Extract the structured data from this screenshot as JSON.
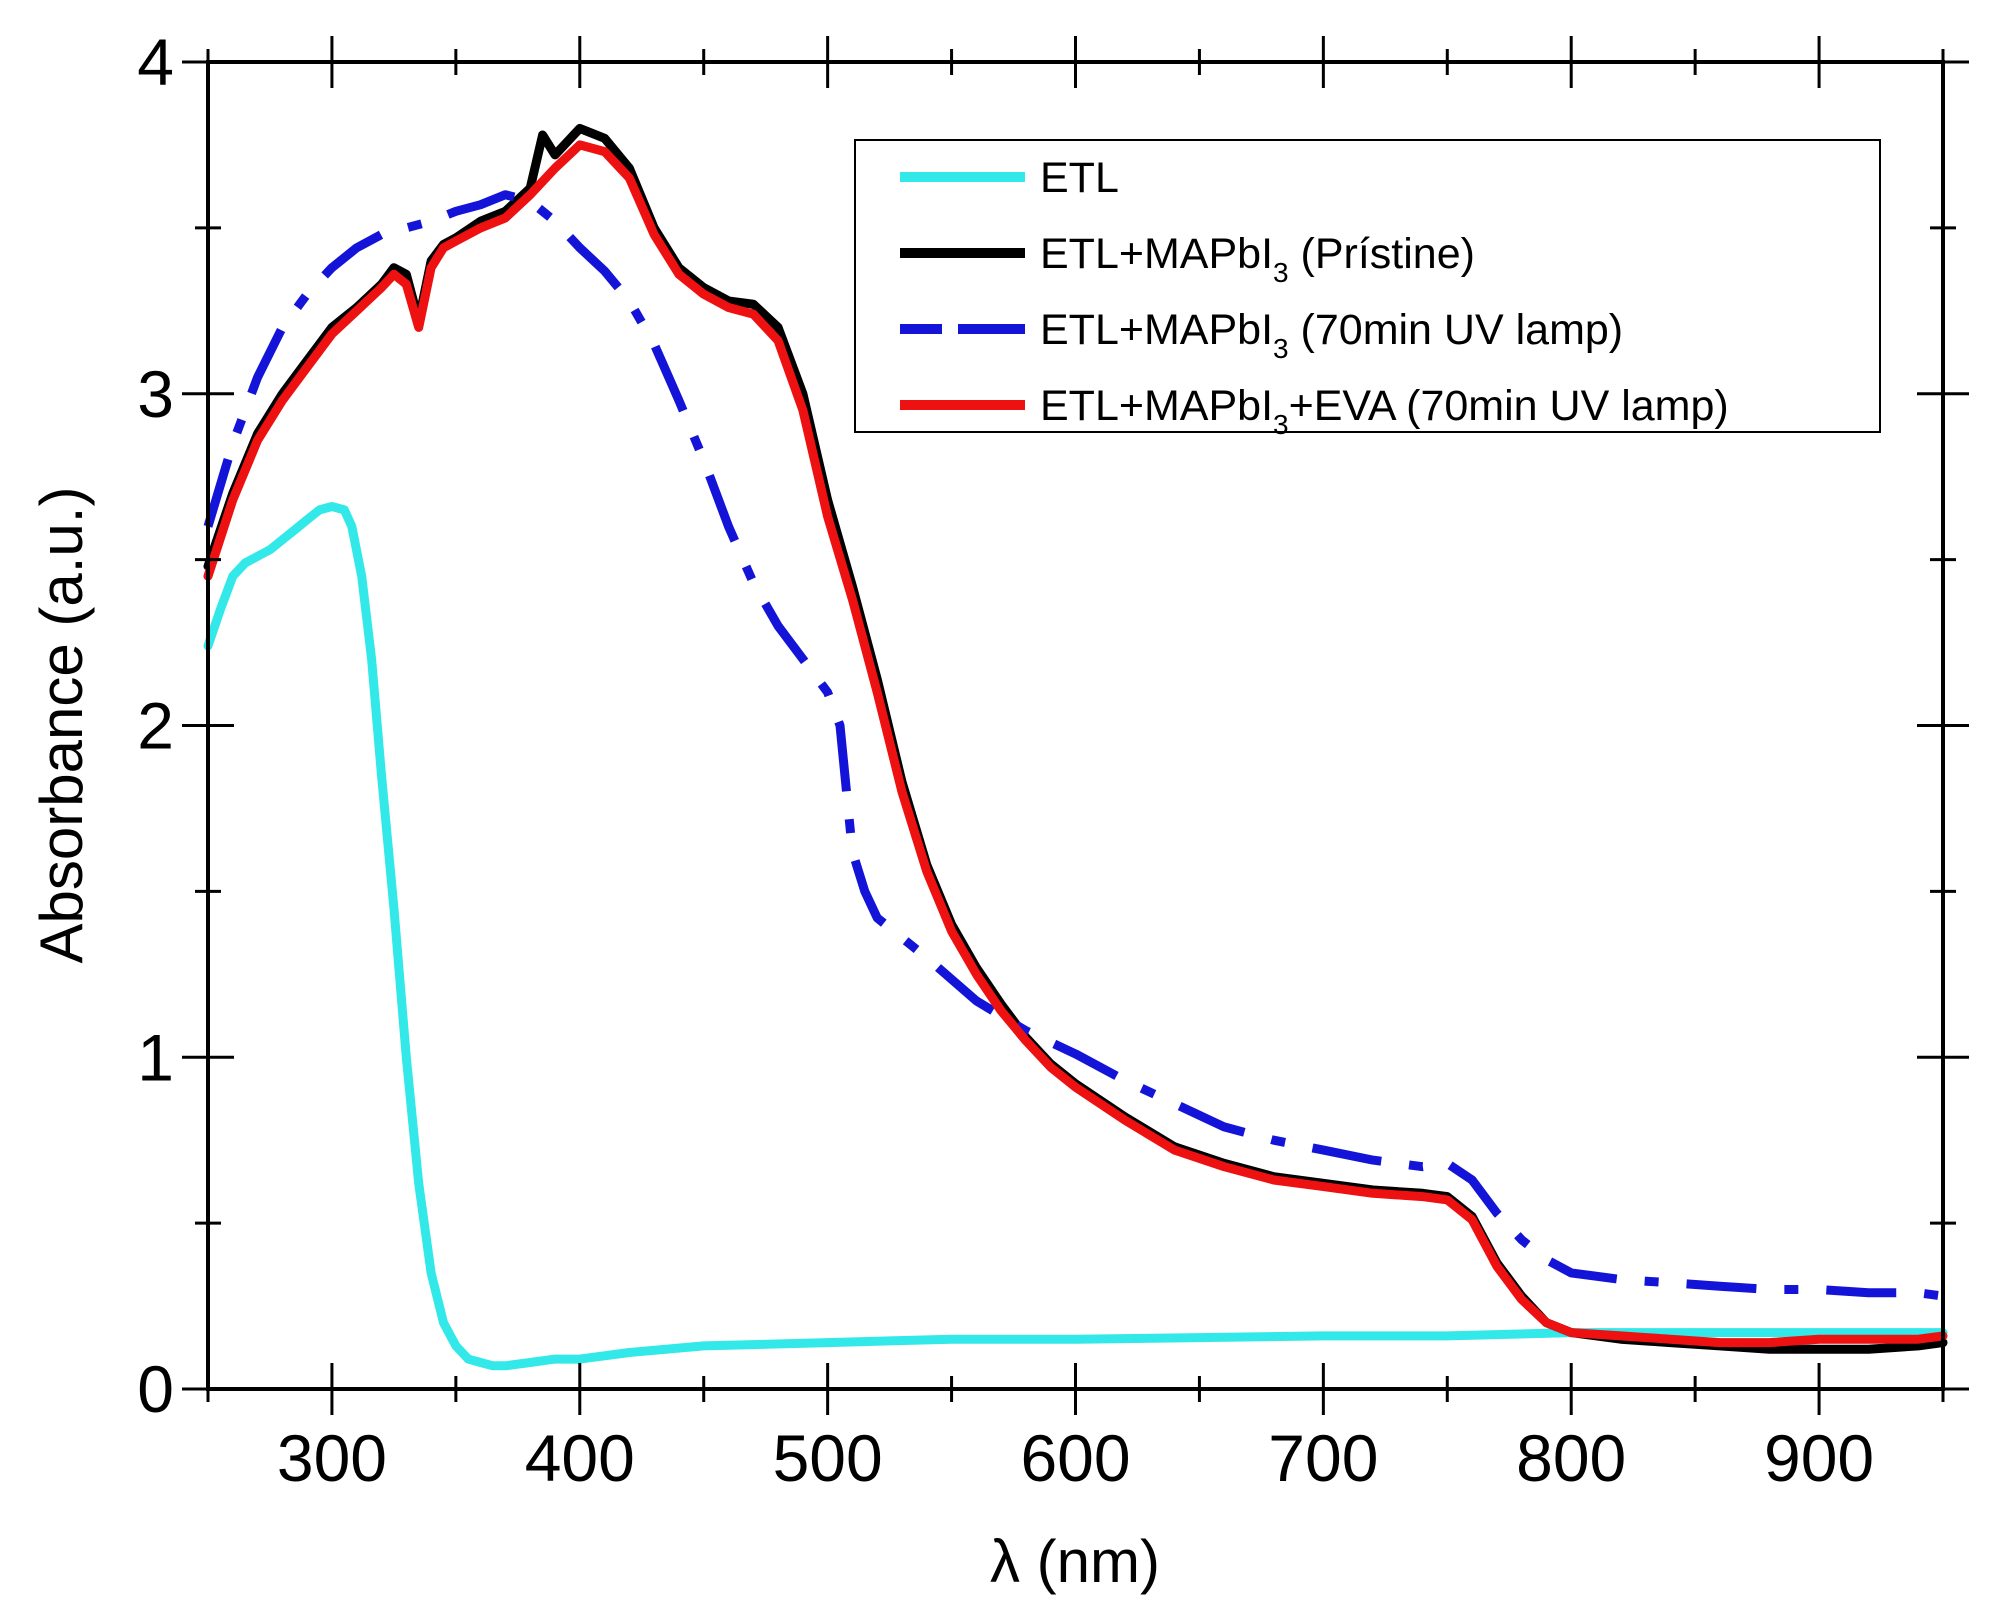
{
  "chart_data": {
    "type": "line",
    "xlabel": "λ (nm)",
    "ylabel": "Absorbance (a.u.)",
    "xlim": [
      250,
      950
    ],
    "ylim": [
      0,
      4
    ],
    "xticks": [
      300,
      400,
      500,
      600,
      700,
      800,
      900
    ],
    "yticks": [
      0,
      1,
      2,
      3,
      4
    ],
    "xtick_labels": [
      "300",
      "400",
      "500",
      "600",
      "700",
      "800",
      "900"
    ],
    "ytick_labels": [
      "0",
      "1",
      "2",
      "3",
      "4"
    ],
    "legend_position": "top-right",
    "series": [
      {
        "name": "ETL",
        "label_parts": [
          "ETL"
        ],
        "color": "#33e8e8",
        "style": "solid",
        "points": [
          [
            250,
            2.24
          ],
          [
            255,
            2.35
          ],
          [
            260,
            2.45
          ],
          [
            265,
            2.49
          ],
          [
            270,
            2.51
          ],
          [
            275,
            2.53
          ],
          [
            280,
            2.56
          ],
          [
            285,
            2.59
          ],
          [
            290,
            2.62
          ],
          [
            295,
            2.65
          ],
          [
            300,
            2.66
          ],
          [
            305,
            2.65
          ],
          [
            308,
            2.6
          ],
          [
            312,
            2.45
          ],
          [
            316,
            2.2
          ],
          [
            320,
            1.85
          ],
          [
            325,
            1.45
          ],
          [
            330,
            1.0
          ],
          [
            335,
            0.62
          ],
          [
            340,
            0.35
          ],
          [
            345,
            0.2
          ],
          [
            350,
            0.13
          ],
          [
            355,
            0.09
          ],
          [
            360,
            0.08
          ],
          [
            365,
            0.07
          ],
          [
            370,
            0.07
          ],
          [
            380,
            0.08
          ],
          [
            390,
            0.09
          ],
          [
            400,
            0.09
          ],
          [
            420,
            0.11
          ],
          [
            450,
            0.13
          ],
          [
            500,
            0.14
          ],
          [
            550,
            0.15
          ],
          [
            600,
            0.15
          ],
          [
            650,
            0.155
          ],
          [
            700,
            0.16
          ],
          [
            750,
            0.16
          ],
          [
            800,
            0.17
          ],
          [
            850,
            0.17
          ],
          [
            900,
            0.17
          ],
          [
            950,
            0.17
          ]
        ]
      },
      {
        "name": "ETL+MAPbI3 (Prístine)",
        "label_parts": [
          "ETL+MAPbI",
          "3",
          " (Prístine)"
        ],
        "color": "#000000",
        "style": "solid",
        "points": [
          [
            250,
            2.48
          ],
          [
            260,
            2.7
          ],
          [
            270,
            2.88
          ],
          [
            280,
            3.0
          ],
          [
            290,
            3.1
          ],
          [
            300,
            3.2
          ],
          [
            310,
            3.26
          ],
          [
            320,
            3.33
          ],
          [
            325,
            3.38
          ],
          [
            330,
            3.36
          ],
          [
            335,
            3.22
          ],
          [
            340,
            3.4
          ],
          [
            345,
            3.45
          ],
          [
            350,
            3.47
          ],
          [
            360,
            3.52
          ],
          [
            370,
            3.55
          ],
          [
            380,
            3.62
          ],
          [
            385,
            3.78
          ],
          [
            390,
            3.72
          ],
          [
            400,
            3.8
          ],
          [
            410,
            3.77
          ],
          [
            420,
            3.68
          ],
          [
            430,
            3.5
          ],
          [
            440,
            3.38
          ],
          [
            450,
            3.32
          ],
          [
            460,
            3.28
          ],
          [
            470,
            3.27
          ],
          [
            480,
            3.2
          ],
          [
            490,
            3.0
          ],
          [
            500,
            2.68
          ],
          [
            510,
            2.42
          ],
          [
            520,
            2.14
          ],
          [
            530,
            1.83
          ],
          [
            540,
            1.58
          ],
          [
            550,
            1.4
          ],
          [
            560,
            1.27
          ],
          [
            570,
            1.16
          ],
          [
            580,
            1.06
          ],
          [
            590,
            0.98
          ],
          [
            600,
            0.92
          ],
          [
            620,
            0.82
          ],
          [
            640,
            0.73
          ],
          [
            660,
            0.68
          ],
          [
            680,
            0.64
          ],
          [
            700,
            0.62
          ],
          [
            720,
            0.6
          ],
          [
            740,
            0.59
          ],
          [
            750,
            0.58
          ],
          [
            760,
            0.52
          ],
          [
            770,
            0.38
          ],
          [
            780,
            0.28
          ],
          [
            790,
            0.2
          ],
          [
            800,
            0.17
          ],
          [
            820,
            0.15
          ],
          [
            840,
            0.14
          ],
          [
            860,
            0.13
          ],
          [
            880,
            0.12
          ],
          [
            900,
            0.12
          ],
          [
            920,
            0.12
          ],
          [
            940,
            0.13
          ],
          [
            950,
            0.14
          ]
        ]
      },
      {
        "name": "ETL+MAPbI3 (70min UV lamp)",
        "label_parts": [
          "ETL+MAPbI",
          "3",
          " (70min UV lamp)"
        ],
        "color": "#1414d8",
        "style": "dashdot",
        "points": [
          [
            250,
            2.6
          ],
          [
            260,
            2.85
          ],
          [
            270,
            3.05
          ],
          [
            280,
            3.2
          ],
          [
            290,
            3.3
          ],
          [
            300,
            3.38
          ],
          [
            310,
            3.44
          ],
          [
            320,
            3.48
          ],
          [
            330,
            3.5
          ],
          [
            340,
            3.52
          ],
          [
            350,
            3.55
          ],
          [
            360,
            3.57
          ],
          [
            370,
            3.6
          ],
          [
            380,
            3.58
          ],
          [
            390,
            3.52
          ],
          [
            400,
            3.44
          ],
          [
            410,
            3.37
          ],
          [
            420,
            3.28
          ],
          [
            430,
            3.15
          ],
          [
            440,
            2.98
          ],
          [
            450,
            2.8
          ],
          [
            460,
            2.6
          ],
          [
            470,
            2.43
          ],
          [
            480,
            2.3
          ],
          [
            490,
            2.2
          ],
          [
            500,
            2.1
          ],
          [
            505,
            2.0
          ],
          [
            510,
            1.62
          ],
          [
            515,
            1.5
          ],
          [
            520,
            1.42
          ],
          [
            530,
            1.36
          ],
          [
            540,
            1.3
          ],
          [
            560,
            1.17
          ],
          [
            580,
            1.08
          ],
          [
            600,
            1.01
          ],
          [
            620,
            0.93
          ],
          [
            640,
            0.86
          ],
          [
            660,
            0.79
          ],
          [
            680,
            0.75
          ],
          [
            700,
            0.72
          ],
          [
            720,
            0.69
          ],
          [
            740,
            0.67
          ],
          [
            750,
            0.68
          ],
          [
            760,
            0.63
          ],
          [
            770,
            0.53
          ],
          [
            780,
            0.45
          ],
          [
            790,
            0.39
          ],
          [
            800,
            0.35
          ],
          [
            820,
            0.33
          ],
          [
            840,
            0.32
          ],
          [
            860,
            0.31
          ],
          [
            880,
            0.3
          ],
          [
            900,
            0.3
          ],
          [
            920,
            0.29
          ],
          [
            940,
            0.29
          ],
          [
            950,
            0.28
          ]
        ]
      },
      {
        "name": "ETL+MAPbI3+EVA (70min UV lamp)",
        "label_parts": [
          "ETL+MAPbI",
          "3",
          "+EVA (70min UV lamp)"
        ],
        "color": "#ee1111",
        "style": "solid",
        "points": [
          [
            250,
            2.45
          ],
          [
            260,
            2.68
          ],
          [
            270,
            2.86
          ],
          [
            280,
            2.98
          ],
          [
            290,
            3.08
          ],
          [
            300,
            3.18
          ],
          [
            310,
            3.25
          ],
          [
            320,
            3.32
          ],
          [
            325,
            3.36
          ],
          [
            330,
            3.33
          ],
          [
            335,
            3.2
          ],
          [
            340,
            3.38
          ],
          [
            345,
            3.44
          ],
          [
            350,
            3.46
          ],
          [
            360,
            3.5
          ],
          [
            370,
            3.53
          ],
          [
            380,
            3.6
          ],
          [
            390,
            3.68
          ],
          [
            400,
            3.75
          ],
          [
            410,
            3.73
          ],
          [
            420,
            3.65
          ],
          [
            430,
            3.48
          ],
          [
            440,
            3.36
          ],
          [
            450,
            3.3
          ],
          [
            460,
            3.26
          ],
          [
            470,
            3.24
          ],
          [
            480,
            3.16
          ],
          [
            490,
            2.95
          ],
          [
            500,
            2.63
          ],
          [
            510,
            2.38
          ],
          [
            520,
            2.1
          ],
          [
            530,
            1.8
          ],
          [
            540,
            1.56
          ],
          [
            550,
            1.38
          ],
          [
            560,
            1.25
          ],
          [
            570,
            1.14
          ],
          [
            580,
            1.05
          ],
          [
            590,
            0.97
          ],
          [
            600,
            0.91
          ],
          [
            620,
            0.81
          ],
          [
            640,
            0.72
          ],
          [
            660,
            0.67
          ],
          [
            680,
            0.63
          ],
          [
            700,
            0.61
          ],
          [
            720,
            0.59
          ],
          [
            740,
            0.58
          ],
          [
            750,
            0.57
          ],
          [
            760,
            0.51
          ],
          [
            770,
            0.37
          ],
          [
            780,
            0.27
          ],
          [
            790,
            0.2
          ],
          [
            800,
            0.17
          ],
          [
            820,
            0.16
          ],
          [
            840,
            0.15
          ],
          [
            860,
            0.14
          ],
          [
            880,
            0.14
          ],
          [
            900,
            0.15
          ],
          [
            920,
            0.15
          ],
          [
            940,
            0.15
          ],
          [
            950,
            0.16
          ]
        ]
      }
    ]
  }
}
